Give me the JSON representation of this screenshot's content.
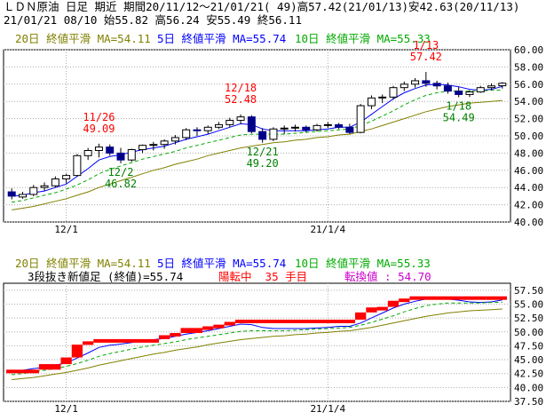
{
  "header": {
    "line1": "ＬＤＮ原油 日足 期近 期間20/11/12～21/01/21( 49)高57.42(21/01/13)安42.63(20/11/13)",
    "line2": "21/01/21 08/10 始55.82 高56.24 安55.49 終56.11"
  },
  "colors": {
    "ma20": "#808000",
    "ma5": "#0000ff",
    "ma10": "#00aa00",
    "high": "#ff0000",
    "low": "#008000",
    "candle_down": "#00008b",
    "brick_up": "#ff0000",
    "turn": "#cc00cc",
    "grid": "#aaaaaa"
  },
  "top_legend": {
    "ma20": "20日 終値平滑 MA=54.11",
    "ma5": "5日 終値平滑 MA=55.74",
    "ma10": "10日 終値平滑 MA=55.33"
  },
  "bottom_legend": {
    "ma20": "20日 終値平滑 MA=54.11",
    "ma5": "5日 終値平滑 MA=55.74",
    "ma10": "10日 終値平滑 MA=55.33",
    "kagi_prefix": "3段抜き新値足 (終値)=55.74",
    "kagi_state": "陽転中  35 手目",
    "kagi_turn": "転換値 : 54.70"
  },
  "annotations": [
    {
      "date": "11/26",
      "value": "49.09",
      "kind": "high"
    },
    {
      "date": "12/2",
      "value": "46.82",
      "kind": "low"
    },
    {
      "date": "12/18",
      "value": "52.48",
      "kind": "high"
    },
    {
      "date": "12/21",
      "value": "49.20",
      "kind": "low"
    },
    {
      "date": "1/13",
      "value": "57.42",
      "kind": "high"
    },
    {
      "date": "1/18",
      "value": "54.49",
      "kind": "low"
    }
  ],
  "chart_data": [
    {
      "type": "candlestick",
      "title": "ＬＤＮ原油 日足 期近",
      "x_tick_labels": [
        "12/1",
        "21/1/4"
      ],
      "y_tick_labels": [
        "40.00",
        "42.00",
        "44.00",
        "46.00",
        "48.00",
        "50.00",
        "52.00",
        "54.00",
        "56.00",
        "58.00",
        "60.00"
      ],
      "ylim": [
        40,
        60
      ],
      "grid": true,
      "ohlc": [
        [
          43.5,
          43.9,
          42.63,
          43.0
        ],
        [
          42.9,
          43.5,
          42.7,
          43.2
        ],
        [
          43.2,
          44.3,
          43.0,
          44.0
        ],
        [
          44.0,
          44.6,
          43.6,
          44.2
        ],
        [
          44.2,
          45.3,
          44.0,
          45.0
        ],
        [
          45.0,
          45.6,
          44.5,
          45.4
        ],
        [
          45.4,
          47.9,
          45.3,
          47.7
        ],
        [
          47.7,
          48.6,
          47.2,
          48.3
        ],
        [
          48.3,
          49.09,
          47.5,
          48.7
        ],
        [
          48.7,
          49.0,
          47.7,
          48.0
        ],
        [
          48.0,
          48.6,
          46.82,
          47.2
        ],
        [
          47.2,
          48.5,
          47.0,
          48.4
        ],
        [
          48.4,
          49.0,
          48.0,
          48.9
        ],
        [
          48.9,
          49.3,
          48.3,
          49.0
        ],
        [
          49.0,
          49.6,
          48.5,
          49.4
        ],
        [
          49.4,
          50.1,
          49.0,
          49.8
        ],
        [
          49.8,
          50.9,
          49.5,
          50.7
        ],
        [
          50.7,
          51.0,
          50.0,
          50.6
        ],
        [
          50.6,
          51.2,
          50.2,
          51.0
        ],
        [
          51.0,
          51.6,
          50.8,
          51.3
        ],
        [
          51.3,
          52.1,
          51.0,
          51.8
        ],
        [
          51.8,
          52.48,
          51.4,
          52.2
        ],
        [
          52.2,
          52.4,
          50.3,
          50.5
        ],
        [
          50.5,
          50.9,
          49.2,
          49.6
        ],
        [
          49.6,
          51.0,
          49.4,
          50.8
        ],
        [
          50.8,
          51.2,
          50.2,
          50.9
        ],
        [
          50.9,
          51.3,
          50.5,
          51.0
        ],
        [
          51.0,
          51.2,
          50.4,
          50.7
        ],
        [
          50.7,
          51.4,
          50.5,
          51.2
        ],
        [
          51.2,
          51.6,
          50.9,
          51.3
        ],
        [
          51.3,
          51.5,
          50.8,
          51.0
        ],
        [
          51.0,
          51.4,
          50.2,
          50.4
        ],
        [
          50.4,
          53.7,
          50.3,
          53.5
        ],
        [
          53.5,
          54.7,
          53.1,
          54.4
        ],
        [
          54.4,
          54.8,
          53.8,
          54.5
        ],
        [
          54.5,
          55.8,
          54.2,
          55.6
        ],
        [
          55.6,
          56.3,
          55.2,
          56.0
        ],
        [
          56.0,
          56.7,
          55.6,
          56.4
        ],
        [
          56.4,
          57.42,
          55.7,
          56.1
        ],
        [
          56.1,
          56.4,
          55.4,
          55.8
        ],
        [
          55.8,
          56.2,
          54.9,
          55.2
        ],
        [
          55.2,
          55.7,
          54.49,
          54.8
        ],
        [
          54.8,
          55.3,
          54.5,
          55.1
        ],
        [
          55.1,
          55.8,
          55.0,
          55.6
        ],
        [
          55.6,
          56.1,
          55.3,
          55.8
        ],
        [
          55.82,
          56.24,
          55.49,
          56.11
        ]
      ],
      "series": [
        {
          "name": "5日 終値平滑 MA=55.74",
          "values": [
            43.0,
            43.1,
            43.4,
            43.6,
            44.0,
            44.4,
            45.3,
            46.2,
            47.2,
            47.6,
            47.8,
            48.1,
            48.4,
            48.6,
            48.8,
            49.2,
            49.6,
            49.9,
            50.2,
            50.6,
            51.0,
            51.4,
            51.3,
            50.8,
            50.6,
            50.6,
            50.6,
            50.6,
            50.7,
            50.8,
            51.0,
            51.0,
            51.6,
            52.5,
            53.4,
            54.3,
            55.0,
            55.5,
            55.9,
            56.0,
            55.9,
            55.7,
            55.4,
            55.3,
            55.4,
            55.74
          ]
        },
        {
          "name": "10日 終値平滑 MA=55.33",
          "values": [
            42.3,
            42.5,
            42.8,
            43.1,
            43.4,
            43.8,
            44.3,
            44.9,
            45.6,
            46.1,
            46.5,
            46.9,
            47.3,
            47.6,
            47.9,
            48.2,
            48.6,
            48.9,
            49.2,
            49.5,
            49.8,
            50.1,
            50.2,
            50.2,
            50.2,
            50.2,
            50.3,
            50.4,
            50.5,
            50.6,
            50.7,
            50.8,
            51.2,
            51.7,
            52.3,
            52.9,
            53.6,
            54.2,
            54.7,
            55.0,
            55.2,
            55.2,
            55.2,
            55.2,
            55.3,
            55.33
          ]
        },
        {
          "name": "20日 終値平滑 MA=54.11",
          "values": [
            41.4,
            41.6,
            41.8,
            42.1,
            42.4,
            42.7,
            43.1,
            43.5,
            44.0,
            44.4,
            44.8,
            45.2,
            45.6,
            46.0,
            46.3,
            46.7,
            47.0,
            47.3,
            47.7,
            48.0,
            48.3,
            48.6,
            48.8,
            49.0,
            49.2,
            49.3,
            49.5,
            49.6,
            49.8,
            49.9,
            50.1,
            50.2,
            50.5,
            50.8,
            51.2,
            51.6,
            52.0,
            52.4,
            52.8,
            53.1,
            53.4,
            53.6,
            53.8,
            53.9,
            54.0,
            54.11
          ]
        }
      ]
    },
    {
      "type": "line",
      "title": "3段抜き新値足 (終値)=55.74",
      "x_tick_labels": [
        "12/1",
        "21/1/4"
      ],
      "y_tick_labels": [
        "37.50",
        "40.00",
        "42.50",
        "45.00",
        "47.50",
        "50.00",
        "52.50",
        "55.00",
        "57.50"
      ],
      "ylim": [
        37.5,
        58.75
      ],
      "grid": true,
      "bricks": [
        [
          0,
          42.6,
          43.2
        ],
        [
          3,
          43.2,
          44.2
        ],
        [
          5,
          44.2,
          45.4
        ],
        [
          6,
          45.4,
          47.7
        ],
        [
          7,
          47.7,
          48.3
        ],
        [
          8,
          48.3,
          48.7
        ],
        [
          14,
          48.7,
          49.4
        ],
        [
          15,
          49.4,
          49.8
        ],
        [
          16,
          49.8,
          50.7
        ],
        [
          18,
          50.7,
          51.0
        ],
        [
          19,
          51.0,
          51.3
        ],
        [
          20,
          51.3,
          51.8
        ],
        [
          21,
          51.8,
          52.2
        ],
        [
          32,
          52.2,
          53.5
        ],
        [
          33,
          53.5,
          54.4
        ],
        [
          34,
          54.4,
          54.5
        ],
        [
          35,
          54.5,
          55.6
        ],
        [
          36,
          55.6,
          56.0
        ],
        [
          37,
          56.0,
          56.4
        ],
        [
          44,
          56.4,
          56.1
        ]
      ],
      "series": [
        {
          "name": "5日 終値平滑 MA=55.74",
          "values": [
            43.0,
            43.1,
            43.4,
            43.6,
            44.0,
            44.4,
            45.3,
            46.2,
            47.2,
            47.6,
            47.8,
            48.1,
            48.4,
            48.6,
            48.8,
            49.2,
            49.6,
            49.9,
            50.2,
            50.6,
            51.0,
            51.4,
            51.3,
            50.8,
            50.6,
            50.6,
            50.6,
            50.6,
            50.7,
            50.8,
            51.0,
            51.0,
            51.6,
            52.5,
            53.4,
            54.3,
            55.0,
            55.5,
            55.9,
            56.0,
            55.9,
            55.7,
            55.4,
            55.3,
            55.4,
            55.74
          ]
        },
        {
          "name": "10日 終値平滑 MA=55.33",
          "values": [
            42.3,
            42.5,
            42.8,
            43.1,
            43.4,
            43.8,
            44.3,
            44.9,
            45.6,
            46.1,
            46.5,
            46.9,
            47.3,
            47.6,
            47.9,
            48.2,
            48.6,
            48.9,
            49.2,
            49.5,
            49.8,
            50.1,
            50.2,
            50.2,
            50.2,
            50.2,
            50.3,
            50.4,
            50.5,
            50.6,
            50.7,
            50.8,
            51.2,
            51.7,
            52.3,
            52.9,
            53.6,
            54.2,
            54.7,
            55.0,
            55.2,
            55.2,
            55.2,
            55.2,
            55.3,
            55.33
          ]
        },
        {
          "name": "20日 終値平滑 MA=54.11",
          "values": [
            41.4,
            41.6,
            41.8,
            42.1,
            42.4,
            42.7,
            43.1,
            43.5,
            44.0,
            44.4,
            44.8,
            45.2,
            45.6,
            46.0,
            46.3,
            46.7,
            47.0,
            47.3,
            47.7,
            48.0,
            48.3,
            48.6,
            48.8,
            49.0,
            49.2,
            49.3,
            49.5,
            49.6,
            49.8,
            49.9,
            50.1,
            50.2,
            50.5,
            50.8,
            51.2,
            51.6,
            52.0,
            52.4,
            52.8,
            53.1,
            53.4,
            53.6,
            53.8,
            53.9,
            54.0,
            54.11
          ]
        }
      ]
    }
  ]
}
